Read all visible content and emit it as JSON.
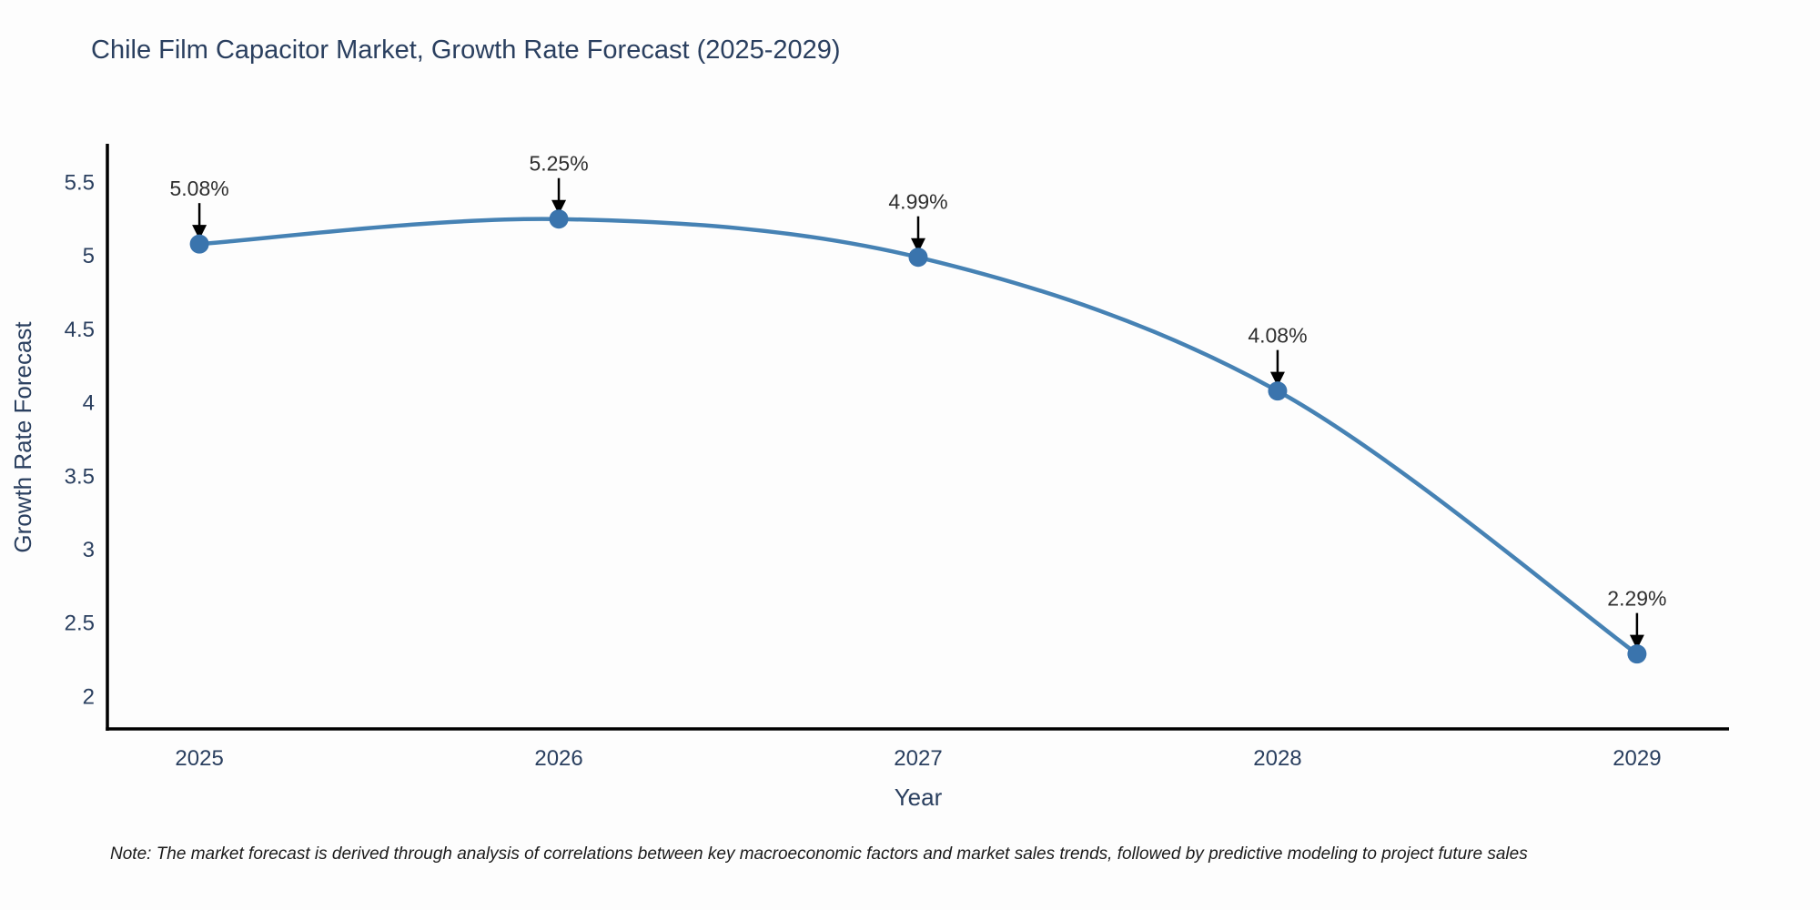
{
  "page": {
    "title": "Chile Film Capacitor Market, Growth Rate Forecast (2025-2029)",
    "note": "Note: The market forecast is derived through analysis of correlations between key macroeconomic factors and market sales trends, followed by predictive modeling to project future sales"
  },
  "chart_data": {
    "type": "line",
    "title": "Chile Film Capacitor Market, Growth Rate Forecast (2025-2029)",
    "xlabel": "Year",
    "ylabel": "Growth Rate Forecast",
    "x": [
      2025,
      2026,
      2027,
      2028,
      2029
    ],
    "series": [
      {
        "name": "Growth Rate Forecast",
        "values": [
          5.08,
          5.25,
          4.99,
          4.08,
          2.29
        ],
        "point_labels": [
          "5.08%",
          "5.25%",
          "4.99%",
          "4.08%",
          "2.29%"
        ]
      }
    ],
    "y_ticks": [
      2,
      2.5,
      3,
      3.5,
      4,
      4.5,
      5,
      5.5
    ],
    "x_ticks": [
      "2025",
      "2026",
      "2027",
      "2028",
      "2029"
    ],
    "ylim": [
      1.78,
      5.75
    ],
    "xlim": [
      2024.744,
      2029.256
    ],
    "grid": false,
    "legend_position": "none",
    "line_shape": "spline",
    "annotations_have_arrows": true,
    "colors": {
      "line": "#4682b4",
      "marker": "#3a74ad",
      "axis": "#000000",
      "title_text": "#2a3f5f",
      "tick_text": "#2a3f5f",
      "axis_title_text": "#2a3f5f",
      "annotation_text": "#2f2f2f",
      "arrow": "#000000",
      "background": "#fdfdfd"
    }
  }
}
